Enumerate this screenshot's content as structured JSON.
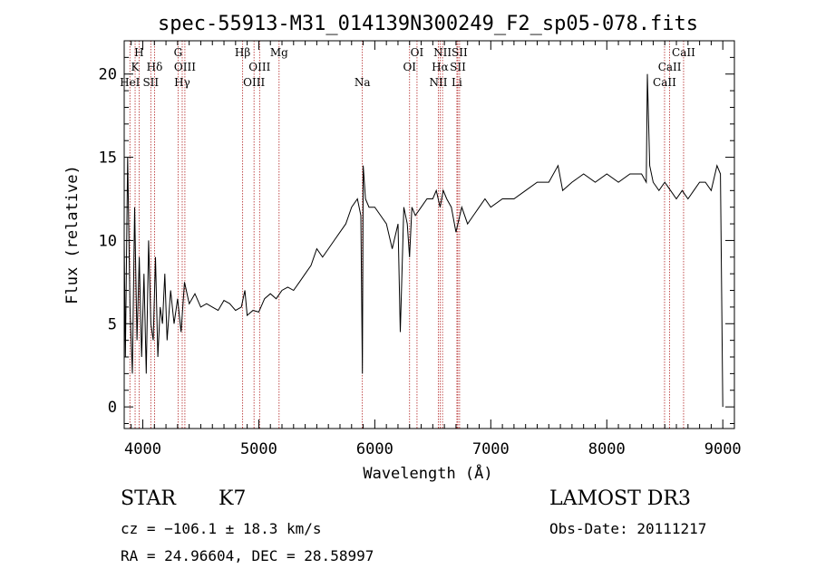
{
  "chart_data": {
    "type": "line",
    "title": "spec-55913-M31_014139N300249_F2_sp05-078.fits",
    "xlabel": "Wavelength (Å)",
    "ylabel": "Flux (relative)",
    "xlim": [
      3840,
      9100
    ],
    "ylim": [
      -1.3,
      22
    ],
    "xticks": [
      4000,
      5000,
      6000,
      7000,
      8000,
      9000
    ],
    "yticks": [
      0,
      5,
      10,
      15,
      20
    ],
    "grid": false,
    "series": [
      {
        "color": "#000000",
        "x": [
          3840,
          3850,
          3870,
          3890,
          3910,
          3930,
          3950,
          3970,
          3990,
          4010,
          4030,
          4050,
          4070,
          4090,
          4110,
          4130,
          4150,
          4170,
          4190,
          4210,
          4240,
          4270,
          4300,
          4330,
          4360,
          4400,
          4450,
          4500,
          4550,
          4600,
          4650,
          4700,
          4750,
          4800,
          4850,
          4880,
          4900,
          4950,
          5000,
          5050,
          5100,
          5150,
          5200,
          5250,
          5300,
          5350,
          5400,
          5450,
          5500,
          5550,
          5600,
          5650,
          5700,
          5750,
          5800,
          5850,
          5880,
          5893,
          5900,
          5920,
          5950,
          6000,
          6050,
          6100,
          6150,
          6200,
          6220,
          6250,
          6280,
          6300,
          6320,
          6350,
          6400,
          6450,
          6500,
          6530,
          6563,
          6590,
          6620,
          6660,
          6700,
          6750,
          6800,
          6850,
          6900,
          6950,
          7000,
          7100,
          7200,
          7300,
          7400,
          7500,
          7580,
          7620,
          7700,
          7800,
          7900,
          8000,
          8100,
          8200,
          8300,
          8340,
          8350,
          8370,
          8400,
          8450,
          8500,
          8550,
          8600,
          8650,
          8700,
          8750,
          8800,
          8850,
          8900,
          8950,
          8980,
          9000
        ],
        "y": [
          10.0,
          3.0,
          15.0,
          6.0,
          2.0,
          12.0,
          4.0,
          9.0,
          3.0,
          8.0,
          2.0,
          10.0,
          5.0,
          4.0,
          9.0,
          3.0,
          6.0,
          5.0,
          8.0,
          4.0,
          7.0,
          5.0,
          6.5,
          4.5,
          7.5,
          6.2,
          6.8,
          6.0,
          6.2,
          6.0,
          5.8,
          6.4,
          6.2,
          5.8,
          6.0,
          7.0,
          5.5,
          5.8,
          5.7,
          6.5,
          6.8,
          6.5,
          7.0,
          7.2,
          7.0,
          7.5,
          8.0,
          8.5,
          9.5,
          9.0,
          9.5,
          10.0,
          10.5,
          11.0,
          12.0,
          12.5,
          11.5,
          2.0,
          14.5,
          12.5,
          12.0,
          12.0,
          11.5,
          11.0,
          9.5,
          11.0,
          4.5,
          12.0,
          11.0,
          9.0,
          12.0,
          11.5,
          12.0,
          12.5,
          12.5,
          13.0,
          12.0,
          13.0,
          12.5,
          12.0,
          10.5,
          12.0,
          11.0,
          11.5,
          12.0,
          12.5,
          12.0,
          12.5,
          12.5,
          13.0,
          13.5,
          13.5,
          14.5,
          13.0,
          13.5,
          14.0,
          13.5,
          14.0,
          13.5,
          14.0,
          14.0,
          13.5,
          20.0,
          14.5,
          13.5,
          13.0,
          13.5,
          13.0,
          12.5,
          13.0,
          12.5,
          13.0,
          13.5,
          13.5,
          13.0,
          14.5,
          14.0,
          0.0
        ]
      }
    ],
    "spectral_lines": [
      {
        "label": "H",
        "wavelength": 3968,
        "row": 0
      },
      {
        "label": "K",
        "wavelength": 3934,
        "row": 1
      },
      {
        "label": "HeI",
        "wavelength": 3889,
        "row": 2
      },
      {
        "label": "SII",
        "wavelength": 4069,
        "row": 2
      },
      {
        "label": "Hδ",
        "wavelength": 4102,
        "row": 1
      },
      {
        "label": "G",
        "wavelength": 4304,
        "row": 0
      },
      {
        "label": "OIII",
        "wavelength": 4363,
        "row": 1
      },
      {
        "label": "Hγ",
        "wavelength": 4340,
        "row": 2
      },
      {
        "label": "Hβ",
        "wavelength": 4861,
        "row": 0
      },
      {
        "label": "OIII",
        "wavelength": 4959,
        "row": 2
      },
      {
        "label": "OIII",
        "wavelength": 5007,
        "row": 1
      },
      {
        "label": "Mg",
        "wavelength": 5175,
        "row": 0
      },
      {
        "label": "Na",
        "wavelength": 5893,
        "row": 2
      },
      {
        "label": "OI",
        "wavelength": 6300,
        "row": 1
      },
      {
        "label": "OI",
        "wavelength": 6364,
        "row": 0
      },
      {
        "label": "NII",
        "wavelength": 6548,
        "row": 2
      },
      {
        "label": "NII",
        "wavelength": 6584,
        "row": 0
      },
      {
        "label": "Hα",
        "wavelength": 6563,
        "row": 1
      },
      {
        "label": "SII",
        "wavelength": 6716,
        "row": 1
      },
      {
        "label": "SII",
        "wavelength": 6731,
        "row": 0
      },
      {
        "label": "Li",
        "wavelength": 6708,
        "row": 2
      },
      {
        "label": "CaII",
        "wavelength": 8498,
        "row": 2
      },
      {
        "label": "CaII",
        "wavelength": 8542,
        "row": 1
      },
      {
        "label": "CaII",
        "wavelength": 8662,
        "row": 0
      }
    ]
  },
  "info": {
    "class_label": "STAR",
    "subclass_label": "K7",
    "survey": "LAMOST DR3",
    "cz": "cz = −106.1 ± 18.3 km/s",
    "obs_date": "Obs-Date: 20111217",
    "coords": "RA =  24.96604, DEC =  28.58997"
  }
}
